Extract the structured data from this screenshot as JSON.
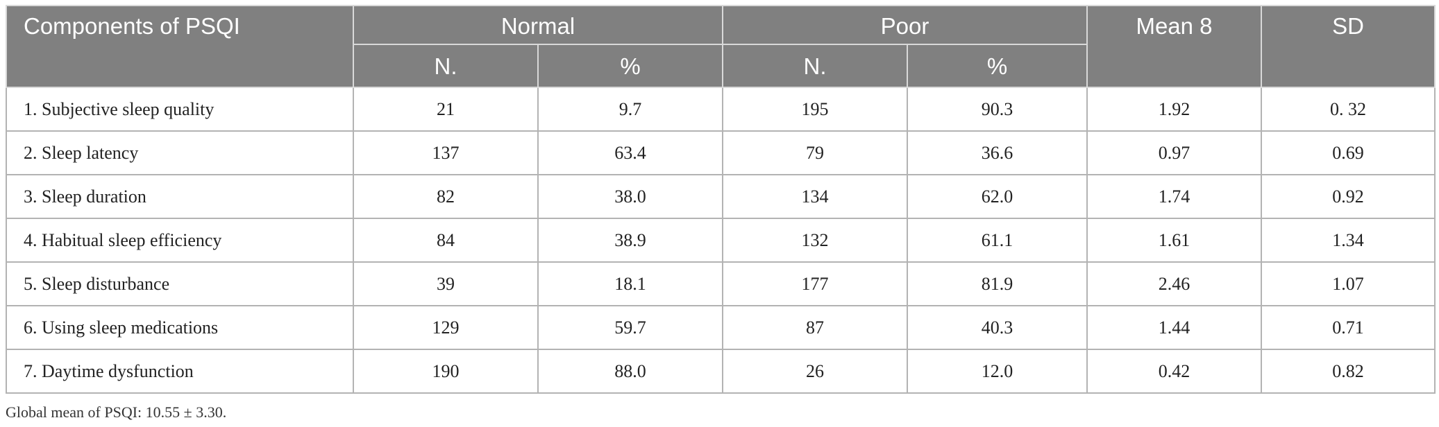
{
  "table": {
    "headers": {
      "component": "Components of PSQI",
      "normal": "Normal",
      "poor": "Poor",
      "mean": "Mean 8",
      "sd": "SD",
      "normal_n": "N.",
      "normal_pct": "%",
      "poor_n": "N.",
      "poor_pct": "%"
    },
    "rows": [
      {
        "component": "1. Subjective sleep quality",
        "normal_n": "21",
        "normal_pct": "9.7",
        "poor_n": "195",
        "poor_pct": "90.3",
        "mean": "1.92",
        "sd": "0. 32"
      },
      {
        "component": "2. Sleep latency",
        "normal_n": "137",
        "normal_pct": "63.4",
        "poor_n": "79",
        "poor_pct": "36.6",
        "mean": "0.97",
        "sd": "0.69"
      },
      {
        "component": "3. Sleep duration",
        "normal_n": "82",
        "normal_pct": "38.0",
        "poor_n": "134",
        "poor_pct": "62.0",
        "mean": "1.74",
        "sd": "0.92"
      },
      {
        "component": "4. Habitual sleep efficiency",
        "normal_n": "84",
        "normal_pct": "38.9",
        "poor_n": "132",
        "poor_pct": "61.1",
        "mean": "1.61",
        "sd": "1.34"
      },
      {
        "component": "5. Sleep disturbance",
        "normal_n": "39",
        "normal_pct": "18.1",
        "poor_n": "177",
        "poor_pct": "81.9",
        "mean": "2.46",
        "sd": "1.07"
      },
      {
        "component": "6. Using sleep medications",
        "normal_n": "129",
        "normal_pct": "59.7",
        "poor_n": "87",
        "poor_pct": "40.3",
        "mean": "1.44",
        "sd": "0.71"
      },
      {
        "component": "7. Daytime dysfunction",
        "normal_n": "190",
        "normal_pct": "88.0",
        "poor_n": "26",
        "poor_pct": "12.0",
        "mean": "0.42",
        "sd": "0.82"
      }
    ]
  },
  "footnote": "Global mean of PSQI: 10.55 ± 3.30.",
  "colors": {
    "header_bg": "#808080",
    "header_text": "#ffffff",
    "grid": "#b3b3b3"
  }
}
